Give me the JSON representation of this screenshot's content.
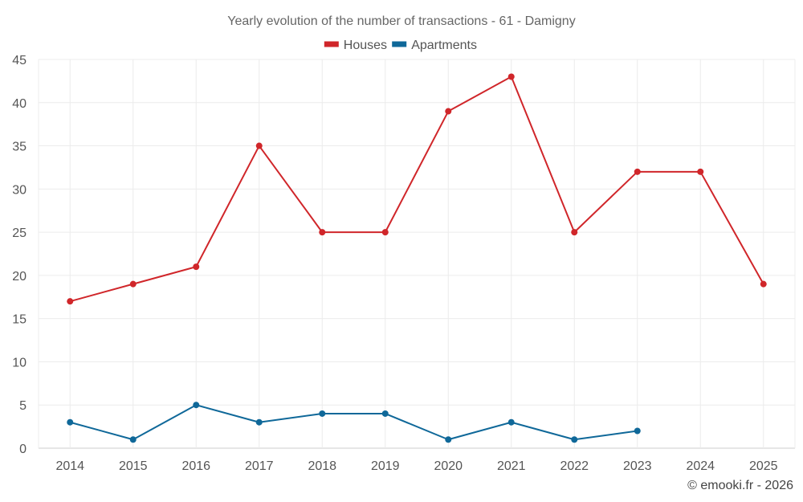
{
  "chart_data": {
    "type": "line",
    "title": "Yearly evolution of the number of transactions - 61 - Damigny",
    "categories": [
      "2014",
      "2015",
      "2016",
      "2017",
      "2018",
      "2019",
      "2020",
      "2021",
      "2022",
      "2023",
      "2024",
      "2025"
    ],
    "series": [
      {
        "name": "Houses",
        "color": "#d0262a",
        "values": [
          17,
          19,
          21,
          35,
          25,
          25,
          39,
          43,
          25,
          32,
          32,
          19
        ]
      },
      {
        "name": "Apartments",
        "color": "#0f6899",
        "values": [
          3,
          1,
          5,
          3,
          4,
          4,
          1,
          3,
          1,
          2,
          null,
          null
        ]
      }
    ],
    "ylim": [
      0,
      45
    ],
    "yticks": [
      0,
      5,
      10,
      15,
      20,
      25,
      30,
      35,
      40,
      45
    ],
    "grid": true,
    "legend": "top-center",
    "xlabel": "",
    "ylabel": ""
  },
  "credit": "© emooki.fr - 2026"
}
